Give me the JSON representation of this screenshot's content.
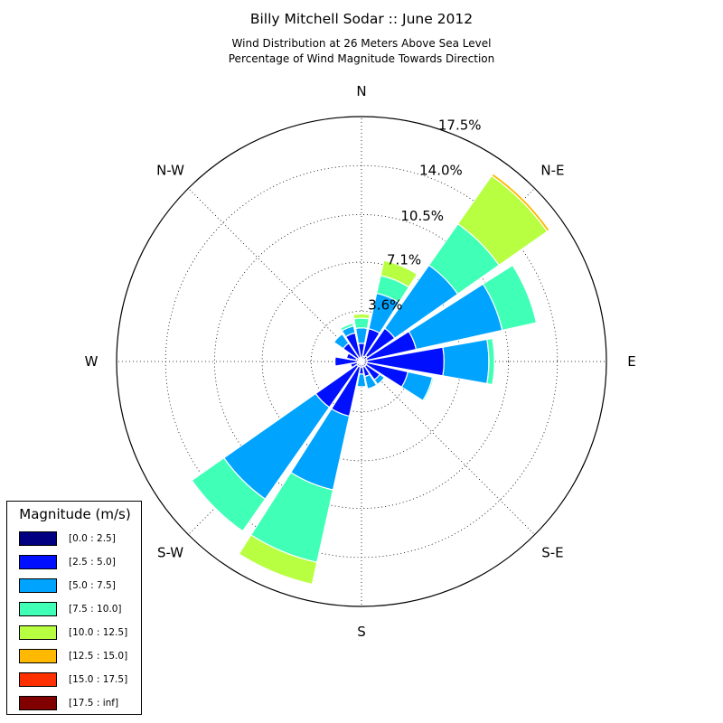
{
  "title": "Billy Mitchell Sodar :: June 2012",
  "subtitle1": "Wind Distribution at 26 Meters Above Sea Level",
  "subtitle2": "Percentage of Wind Magnitude Towards Direction",
  "directions": [
    "N",
    "N-E",
    "E",
    "S-E",
    "S",
    "S-W",
    "W",
    "N-W"
  ],
  "radial_ticks": [
    "3.6%",
    "7.1%",
    "10.5%",
    "14.0%",
    "17.5%"
  ],
  "legend": {
    "title": "Magnitude (m/s)",
    "items": [
      {
        "label": "[0.0 : 2.5]",
        "color": "#000080"
      },
      {
        "label": "[2.5 : 5.0]",
        "color": "#0010ff"
      },
      {
        "label": "[5.0 : 7.5]",
        "color": "#00a4ff"
      },
      {
        "label": "[7.5 : 10.0]",
        "color": "#40ffb7"
      },
      {
        "label": "[10.0 : 12.5]",
        "color": "#b7ff40"
      },
      {
        "label": "[12.5 : 15.0]",
        "color": "#ffb900"
      },
      {
        "label": "[15.0 : 17.5]",
        "color": "#ff3000"
      },
      {
        "label": "[17.5 : inf]",
        "color": "#800000"
      }
    ]
  },
  "chart_data": {
    "type": "windrose",
    "title": "Billy Mitchell Sodar :: June 2012",
    "rmax": 17.5,
    "radial_ticks": [
      3.6,
      7.1,
      10.5,
      14.0,
      17.5
    ],
    "sector_width_deg": 20,
    "bins": [
      "[0.0 : 2.5]",
      "[2.5 : 5.0]",
      "[5.0 : 7.5]",
      "[7.5 : 10.0]",
      "[10.0 : 12.5]",
      "[12.5 : 15.0]",
      "[15.0 : 17.5]",
      "[17.5 : inf]"
    ],
    "sectors": [
      {
        "direction_deg": 0,
        "cumulative": [
          0.3,
          1.3,
          2.4,
          3.1,
          3.4
        ]
      },
      {
        "direction_deg": 22.5,
        "cumulative": [
          0.4,
          2.4,
          5.0,
          6.3,
          7.4
        ]
      },
      {
        "direction_deg": 45,
        "cumulative": [
          0.5,
          2.9,
          8.4,
          12.0,
          16.2,
          16.4
        ]
      },
      {
        "direction_deg": 67.5,
        "cumulative": [
          0.4,
          4.0,
          10.3,
          12.8
        ]
      },
      {
        "direction_deg": 90,
        "cumulative": [
          0.4,
          5.9,
          9.1,
          9.5
        ]
      },
      {
        "direction_deg": 112.5,
        "cumulative": [
          0.4,
          3.4,
          5.2,
          5.3
        ]
      },
      {
        "direction_deg": 135,
        "cumulative": [
          0.4,
          1.6,
          2.0
        ]
      },
      {
        "direction_deg": 157.5,
        "cumulative": [
          0.4,
          1.1,
          2.0
        ]
      },
      {
        "direction_deg": 180,
        "cumulative": [
          0.4,
          0.9,
          1.8
        ]
      },
      {
        "direction_deg": 202.5,
        "cumulative": [
          0.4,
          4.0,
          9.4,
          14.7,
          16.3
        ]
      },
      {
        "direction_deg": 225,
        "cumulative": [
          0.4,
          4.0,
          12.0,
          14.8
        ]
      },
      {
        "direction_deg": 247.5,
        "cumulative": [
          0.3,
          0.8
        ]
      },
      {
        "direction_deg": 270,
        "cumulative": [
          0.3,
          1.9
        ]
      },
      {
        "direction_deg": 292.5,
        "cumulative": [
          0.4,
          1.1
        ]
      },
      {
        "direction_deg": 315,
        "cumulative": [
          0.3,
          1.6,
          2.4
        ]
      },
      {
        "direction_deg": 337.5,
        "cumulative": [
          0.3,
          2.1,
          2.6,
          2.8
        ]
      }
    ]
  }
}
